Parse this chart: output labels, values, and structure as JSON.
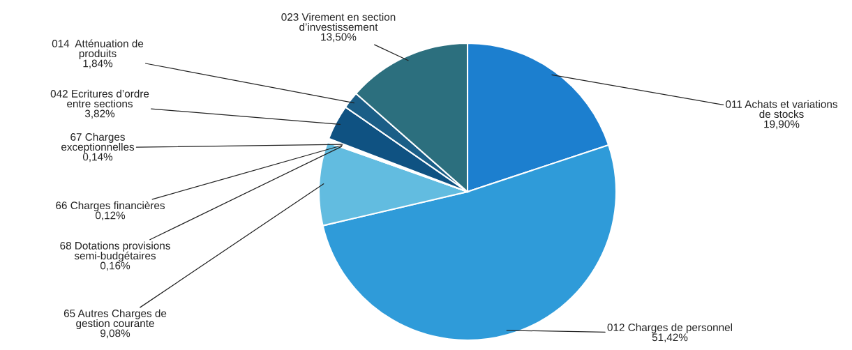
{
  "chart_data": {
    "type": "pie",
    "categories": [
      "011 Achats et variations\nde stocks",
      "012 Charges de personnel",
      "65 Autres Charges de\ngestion courante",
      "68 Dotations provisions\nsemi-budgétaires",
      "66 Charges financières",
      "67 Charges\nexceptionnelles",
      "042 Ecritures d’ordre\nentre sections",
      "014  Atténuation de\nproduits",
      "023 Virement en section\nd’investissement"
    ],
    "values": [
      19.9,
      51.42,
      9.08,
      0.16,
      0.12,
      0.14,
      3.82,
      1.84,
      13.5
    ],
    "value_labels": [
      "19,90%",
      "51,42%",
      "9,08%",
      "0,16%",
      "0,12%",
      "0,14%",
      "3,82%",
      "1,84%",
      "13,50%"
    ],
    "colors": [
      "#1c7fcf",
      "#2f9bd9",
      "#62bce0",
      "#8fcfe8",
      "#a9dcee",
      "#c4e6f2",
      "#0f5282",
      "#1b5e87",
      "#2c6f7e"
    ],
    "legend": false
  }
}
